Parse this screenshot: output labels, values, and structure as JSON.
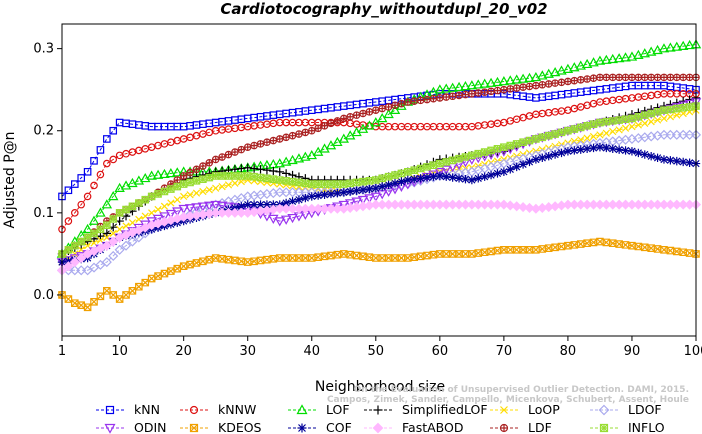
{
  "chart_data": {
    "type": "line",
    "title": "Cardiotocography_withoutdupl_20_v02",
    "xlabel": "Neighborhood size",
    "ylabel": "Adjusted P@n",
    "xlim": [
      1,
      100
    ],
    "ylim": [
      -0.05,
      0.33
    ],
    "x_ticks": [
      1,
      10,
      20,
      30,
      40,
      50,
      60,
      70,
      80,
      90,
      100
    ],
    "y_ticks": [
      0.0,
      0.1,
      0.2,
      0.3
    ],
    "x_tick_labels": [
      "1",
      "10",
      "20",
      "30",
      "40",
      "50",
      "60",
      "70",
      "80",
      "90",
      "100"
    ],
    "y_tick_labels": [
      "0.0",
      "0.1",
      "0.2",
      "0.3"
    ],
    "grid": false,
    "legend_position": "bottom",
    "credit": {
      "line1": "Campos, Zimek, Sander, Campello, Micenkova, Schubert, Assent, Houle",
      "line2": "On the Evaluation of Unsupervised Outlier Detection. DAMI, 2015."
    },
    "series": [
      {
        "name": "kNN",
        "color": "#0000ee",
        "marker": "square",
        "points": [
          [
            1,
            0.12
          ],
          [
            5,
            0.15
          ],
          [
            8,
            0.19
          ],
          [
            10,
            0.21
          ],
          [
            15,
            0.205
          ],
          [
            20,
            0.205
          ],
          [
            25,
            0.21
          ],
          [
            30,
            0.215
          ],
          [
            35,
            0.22
          ],
          [
            40,
            0.225
          ],
          [
            45,
            0.23
          ],
          [
            50,
            0.235
          ],
          [
            55,
            0.24
          ],
          [
            60,
            0.245
          ],
          [
            65,
            0.245
          ],
          [
            70,
            0.245
          ],
          [
            75,
            0.24
          ],
          [
            80,
            0.245
          ],
          [
            85,
            0.25
          ],
          [
            90,
            0.255
          ],
          [
            95,
            0.255
          ],
          [
            100,
            0.25
          ]
        ]
      },
      {
        "name": "kNNW",
        "color": "#dd1111",
        "marker": "circle",
        "points": [
          [
            1,
            0.08
          ],
          [
            5,
            0.12
          ],
          [
            8,
            0.16
          ],
          [
            10,
            0.17
          ],
          [
            15,
            0.18
          ],
          [
            20,
            0.19
          ],
          [
            25,
            0.2
          ],
          [
            30,
            0.205
          ],
          [
            35,
            0.21
          ],
          [
            40,
            0.21
          ],
          [
            45,
            0.21
          ],
          [
            50,
            0.205
          ],
          [
            55,
            0.205
          ],
          [
            60,
            0.205
          ],
          [
            65,
            0.205
          ],
          [
            70,
            0.21
          ],
          [
            75,
            0.22
          ],
          [
            80,
            0.225
          ],
          [
            85,
            0.235
          ],
          [
            90,
            0.24
          ],
          [
            95,
            0.245
          ],
          [
            100,
            0.245
          ]
        ]
      },
      {
        "name": "LOF",
        "color": "#00dd00",
        "marker": "triangle",
        "points": [
          [
            1,
            0.05
          ],
          [
            5,
            0.08
          ],
          [
            8,
            0.11
          ],
          [
            10,
            0.13
          ],
          [
            15,
            0.145
          ],
          [
            20,
            0.15
          ],
          [
            25,
            0.15
          ],
          [
            30,
            0.155
          ],
          [
            35,
            0.16
          ],
          [
            40,
            0.17
          ],
          [
            45,
            0.19
          ],
          [
            50,
            0.21
          ],
          [
            55,
            0.235
          ],
          [
            60,
            0.25
          ],
          [
            65,
            0.255
          ],
          [
            70,
            0.26
          ],
          [
            75,
            0.265
          ],
          [
            80,
            0.275
          ],
          [
            85,
            0.285
          ],
          [
            90,
            0.29
          ],
          [
            95,
            0.3
          ],
          [
            100,
            0.305
          ]
        ]
      },
      {
        "name": "SimplifiedLOF",
        "color": "#000000",
        "marker": "plus",
        "points": [
          [
            1,
            0.05
          ],
          [
            5,
            0.065
          ],
          [
            8,
            0.075
          ],
          [
            10,
            0.09
          ],
          [
            15,
            0.12
          ],
          [
            20,
            0.14
          ],
          [
            25,
            0.15
          ],
          [
            30,
            0.155
          ],
          [
            35,
            0.15
          ],
          [
            40,
            0.14
          ],
          [
            45,
            0.14
          ],
          [
            50,
            0.14
          ],
          [
            55,
            0.15
          ],
          [
            60,
            0.165
          ],
          [
            65,
            0.17
          ],
          [
            70,
            0.175
          ],
          [
            75,
            0.19
          ],
          [
            80,
            0.2
          ],
          [
            85,
            0.21
          ],
          [
            90,
            0.22
          ],
          [
            95,
            0.23
          ],
          [
            100,
            0.24
          ]
        ]
      },
      {
        "name": "LoOP",
        "color": "#ffdd00",
        "marker": "x",
        "points": [
          [
            1,
            0.04
          ],
          [
            5,
            0.06
          ],
          [
            8,
            0.07
          ],
          [
            10,
            0.08
          ],
          [
            15,
            0.1
          ],
          [
            20,
            0.12
          ],
          [
            25,
            0.13
          ],
          [
            30,
            0.14
          ],
          [
            35,
            0.135
          ],
          [
            40,
            0.13
          ],
          [
            45,
            0.125
          ],
          [
            50,
            0.13
          ],
          [
            55,
            0.14
          ],
          [
            60,
            0.15
          ],
          [
            65,
            0.155
          ],
          [
            70,
            0.165
          ],
          [
            75,
            0.175
          ],
          [
            80,
            0.185
          ],
          [
            85,
            0.195
          ],
          [
            90,
            0.205
          ],
          [
            95,
            0.215
          ],
          [
            100,
            0.225
          ]
        ]
      },
      {
        "name": "LDOF",
        "color": "#aaaaee",
        "marker": "diamond",
        "points": [
          [
            1,
            0.03
          ],
          [
            5,
            0.03
          ],
          [
            8,
            0.04
          ],
          [
            10,
            0.055
          ],
          [
            15,
            0.08
          ],
          [
            20,
            0.095
          ],
          [
            25,
            0.11
          ],
          [
            30,
            0.12
          ],
          [
            35,
            0.125
          ],
          [
            40,
            0.125
          ],
          [
            45,
            0.125
          ],
          [
            50,
            0.13
          ],
          [
            55,
            0.135
          ],
          [
            60,
            0.145
          ],
          [
            65,
            0.15
          ],
          [
            70,
            0.16
          ],
          [
            75,
            0.17
          ],
          [
            80,
            0.18
          ],
          [
            85,
            0.185
          ],
          [
            90,
            0.19
          ],
          [
            95,
            0.195
          ],
          [
            100,
            0.195
          ]
        ]
      },
      {
        "name": "ODIN",
        "color": "#9933ee",
        "marker": "triangle-down",
        "points": [
          [
            1,
            0.04
          ],
          [
            5,
            0.05
          ],
          [
            8,
            0.06
          ],
          [
            10,
            0.07
          ],
          [
            15,
            0.09
          ],
          [
            20,
            0.105
          ],
          [
            25,
            0.11
          ],
          [
            30,
            0.105
          ],
          [
            35,
            0.09
          ],
          [
            40,
            0.1
          ],
          [
            45,
            0.11
          ],
          [
            50,
            0.12
          ],
          [
            55,
            0.135
          ],
          [
            60,
            0.15
          ],
          [
            65,
            0.165
          ],
          [
            70,
            0.175
          ],
          [
            75,
            0.19
          ],
          [
            80,
            0.2
          ],
          [
            85,
            0.21
          ],
          [
            90,
            0.215
          ],
          [
            95,
            0.225
          ],
          [
            100,
            0.235
          ]
        ]
      },
      {
        "name": "KDEOS",
        "color": "#f0a000",
        "marker": "square-x",
        "points": [
          [
            1,
            0.0
          ],
          [
            3,
            -0.01
          ],
          [
            5,
            -0.015
          ],
          [
            8,
            0.005
          ],
          [
            10,
            -0.005
          ],
          [
            15,
            0.02
          ],
          [
            20,
            0.035
          ],
          [
            25,
            0.045
          ],
          [
            30,
            0.04
          ],
          [
            35,
            0.045
          ],
          [
            40,
            0.045
          ],
          [
            45,
            0.05
          ],
          [
            50,
            0.045
          ],
          [
            55,
            0.045
          ],
          [
            60,
            0.05
          ],
          [
            65,
            0.05
          ],
          [
            70,
            0.055
          ],
          [
            75,
            0.055
          ],
          [
            80,
            0.06
          ],
          [
            85,
            0.065
          ],
          [
            90,
            0.06
          ],
          [
            95,
            0.055
          ],
          [
            100,
            0.05
          ]
        ]
      },
      {
        "name": "COF",
        "color": "#000099",
        "marker": "asterisk",
        "points": [
          [
            1,
            0.04
          ],
          [
            5,
            0.045
          ],
          [
            8,
            0.06
          ],
          [
            10,
            0.07
          ],
          [
            15,
            0.08
          ],
          [
            20,
            0.09
          ],
          [
            25,
            0.1
          ],
          [
            30,
            0.11
          ],
          [
            35,
            0.11
          ],
          [
            40,
            0.12
          ],
          [
            45,
            0.125
          ],
          [
            50,
            0.13
          ],
          [
            55,
            0.14
          ],
          [
            60,
            0.145
          ],
          [
            65,
            0.14
          ],
          [
            70,
            0.15
          ],
          [
            75,
            0.165
          ],
          [
            80,
            0.175
          ],
          [
            85,
            0.18
          ],
          [
            90,
            0.175
          ],
          [
            95,
            0.165
          ],
          [
            100,
            0.16
          ]
        ]
      },
      {
        "name": "FastABOD",
        "color": "#ffb8ff",
        "marker": "diamond-filled",
        "points": [
          [
            1,
            0.03
          ],
          [
            5,
            0.05
          ],
          [
            8,
            0.06
          ],
          [
            10,
            0.07
          ],
          [
            15,
            0.085
          ],
          [
            20,
            0.095
          ],
          [
            25,
            0.1
          ],
          [
            30,
            0.1
          ],
          [
            35,
            0.105
          ],
          [
            40,
            0.105
          ],
          [
            45,
            0.105
          ],
          [
            50,
            0.11
          ],
          [
            55,
            0.11
          ],
          [
            60,
            0.11
          ],
          [
            65,
            0.11
          ],
          [
            70,
            0.11
          ],
          [
            75,
            0.105
          ],
          [
            80,
            0.11
          ],
          [
            85,
            0.11
          ],
          [
            90,
            0.11
          ],
          [
            95,
            0.11
          ],
          [
            100,
            0.11
          ]
        ]
      },
      {
        "name": "LDF",
        "color": "#aa2222",
        "marker": "circle-plus",
        "points": [
          [
            1,
            0.05
          ],
          [
            5,
            0.07
          ],
          [
            8,
            0.09
          ],
          [
            10,
            0.1
          ],
          [
            15,
            0.12
          ],
          [
            20,
            0.145
          ],
          [
            25,
            0.165
          ],
          [
            30,
            0.18
          ],
          [
            35,
            0.19
          ],
          [
            40,
            0.2
          ],
          [
            45,
            0.215
          ],
          [
            50,
            0.225
          ],
          [
            55,
            0.235
          ],
          [
            60,
            0.24
          ],
          [
            65,
            0.245
          ],
          [
            70,
            0.25
          ],
          [
            75,
            0.255
          ],
          [
            80,
            0.26
          ],
          [
            85,
            0.265
          ],
          [
            90,
            0.265
          ],
          [
            95,
            0.265
          ],
          [
            100,
            0.265
          ]
        ]
      },
      {
        "name": "INFLO",
        "color": "#99dd33",
        "marker": "square-cross",
        "points": [
          [
            1,
            0.05
          ],
          [
            5,
            0.07
          ],
          [
            8,
            0.085
          ],
          [
            10,
            0.1
          ],
          [
            15,
            0.12
          ],
          [
            20,
            0.135
          ],
          [
            25,
            0.145
          ],
          [
            30,
            0.145
          ],
          [
            35,
            0.14
          ],
          [
            40,
            0.135
          ],
          [
            45,
            0.135
          ],
          [
            50,
            0.14
          ],
          [
            55,
            0.15
          ],
          [
            60,
            0.16
          ],
          [
            65,
            0.17
          ],
          [
            70,
            0.18
          ],
          [
            75,
            0.19
          ],
          [
            80,
            0.2
          ],
          [
            85,
            0.21
          ],
          [
            90,
            0.215
          ],
          [
            95,
            0.225
          ],
          [
            100,
            0.23
          ]
        ]
      }
    ]
  }
}
